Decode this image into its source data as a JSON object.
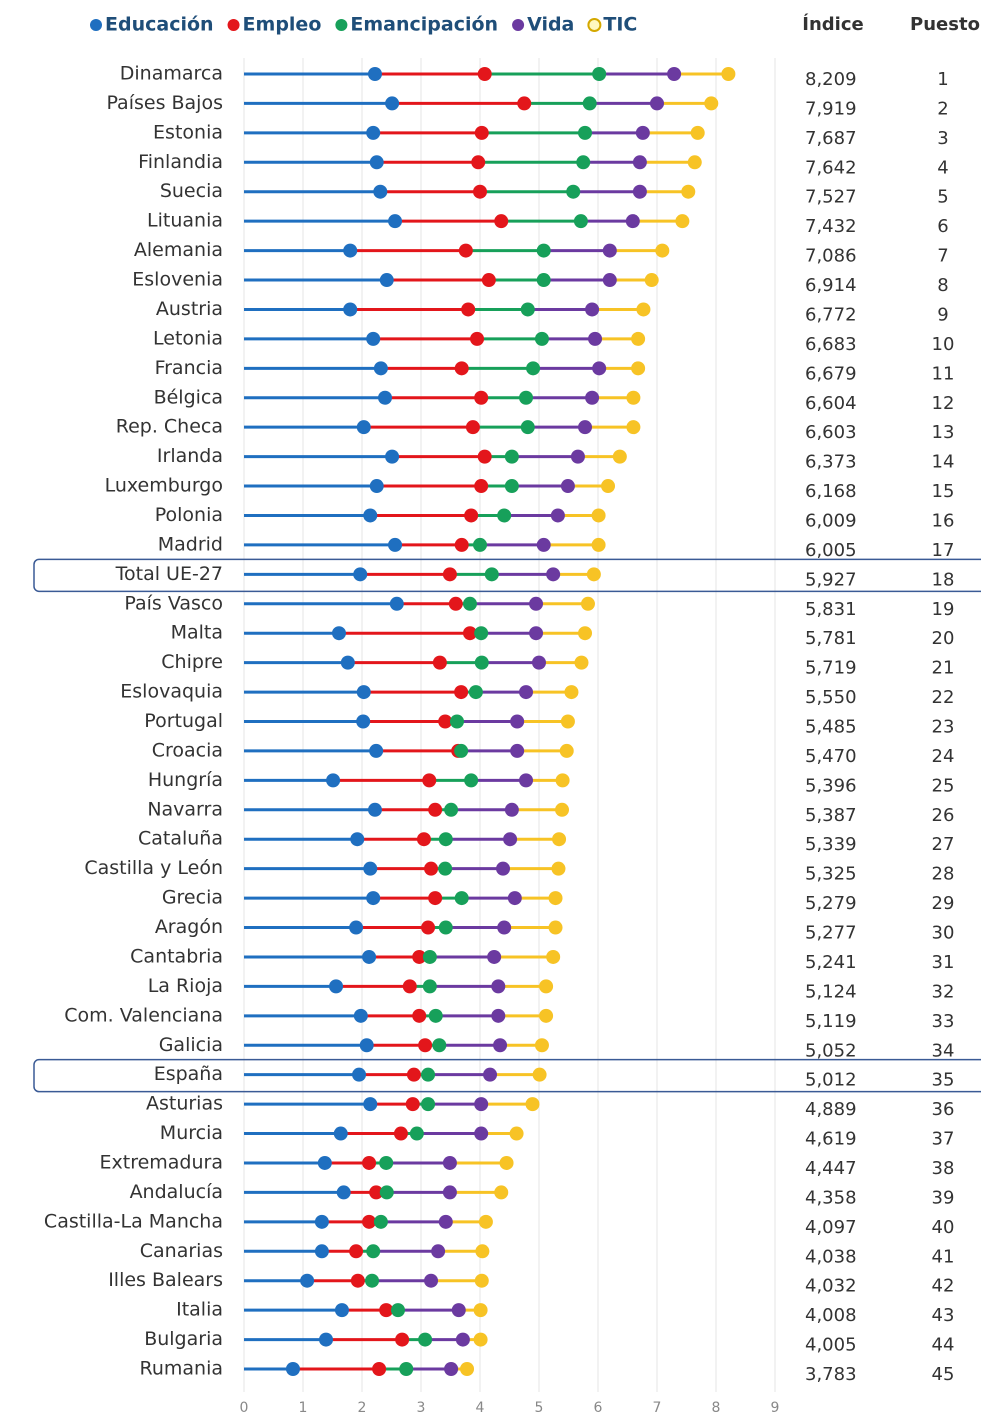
{
  "chart_data": {
    "type": "dot_stack",
    "categories": [
      "Dinamarca",
      "Países Bajos",
      "Estonia",
      "Finlandia",
      "Suecia",
      "Lituania",
      "Alemania",
      "Eslovenia",
      "Austria",
      "Letonia",
      "Francia",
      "Bélgica",
      "Rep. Checa",
      "Irlanda",
      "Luxemburgo",
      "Polonia",
      "Madrid",
      "Total UE-27",
      "País Vasco",
      "Malta",
      "Chipre",
      "Eslovaquia",
      "Portugal",
      "Croacia",
      "Hungría",
      "Navarra",
      "Cataluña",
      "Castilla y León",
      "Grecia",
      "Aragón",
      "Cantabria",
      "La Rioja",
      "Com. Valenciana",
      "Galicia",
      "España",
      "Asturias",
      "Murcia",
      "Extremadura",
      "Andalucía",
      "Castilla-La Mancha",
      "Canarias",
      "Illes Balears",
      "Italia",
      "Bulgaria",
      "Rumania"
    ],
    "series": [
      {
        "name": "Educación",
        "color": "#1f6fc0",
        "values": [
          2.22,
          2.51,
          2.19,
          2.25,
          2.31,
          2.56,
          1.8,
          2.42,
          1.8,
          2.19,
          2.32,
          2.39,
          2.03,
          2.51,
          2.25,
          2.14,
          2.56,
          1.97,
          2.59,
          1.61,
          1.76,
          2.03,
          2.02,
          2.24,
          1.51,
          2.22,
          1.92,
          2.14,
          2.19,
          1.9,
          2.12,
          1.56,
          1.98,
          2.08,
          1.95,
          2.14,
          1.64,
          1.37,
          1.69,
          1.32,
          1.32,
          1.07,
          1.66,
          1.39,
          0.83
        ]
      },
      {
        "name": "Empleo",
        "color": "#e3161b",
        "values": [
          1.86,
          2.24,
          1.84,
          1.72,
          1.69,
          1.8,
          1.96,
          1.73,
          2.0,
          1.76,
          1.37,
          1.63,
          1.85,
          1.57,
          1.77,
          1.71,
          1.13,
          1.52,
          1.0,
          2.22,
          1.56,
          1.65,
          1.39,
          1.39,
          1.63,
          1.02,
          1.13,
          1.03,
          1.05,
          1.22,
          0.85,
          1.25,
          0.99,
          0.99,
          0.93,
          0.72,
          1.02,
          0.75,
          0.55,
          0.8,
          0.58,
          0.86,
          0.75,
          1.29,
          1.46
        ]
      },
      {
        "name": "Emancipación",
        "color": "#17a05a",
        "values": [
          1.94,
          1.11,
          1.75,
          1.78,
          1.58,
          1.35,
          1.32,
          0.93,
          1.01,
          1.1,
          1.21,
          0.76,
          0.93,
          0.46,
          0.52,
          0.56,
          0.31,
          0.71,
          0.24,
          0.19,
          0.71,
          0.25,
          0.2,
          0.05,
          0.71,
          0.27,
          0.37,
          0.24,
          0.45,
          0.3,
          0.18,
          0.34,
          0.28,
          0.24,
          0.24,
          0.26,
          0.27,
          0.29,
          0.18,
          0.2,
          0.29,
          0.24,
          0.2,
          0.39,
          0.46
        ]
      },
      {
        "name": "Vida",
        "color": "#6b3aa0",
        "values": [
          1.27,
          1.14,
          0.98,
          0.96,
          1.13,
          0.88,
          1.12,
          1.12,
          1.09,
          0.9,
          1.12,
          1.12,
          0.97,
          1.12,
          0.95,
          0.91,
          1.08,
          1.04,
          1.12,
          0.93,
          0.97,
          0.85,
          1.02,
          0.95,
          0.93,
          1.03,
          1.09,
          0.98,
          0.9,
          0.99,
          1.09,
          1.16,
          1.06,
          1.03,
          1.05,
          0.9,
          1.09,
          1.08,
          1.07,
          1.1,
          1.1,
          1.0,
          1.03,
          0.64,
          0.76
        ]
      },
      {
        "name": "TIC",
        "color": "#f7c325",
        "values": [
          0.92,
          0.92,
          0.93,
          0.93,
          0.82,
          0.84,
          0.89,
          0.71,
          0.87,
          0.73,
          0.66,
          0.7,
          0.82,
          0.71,
          0.68,
          0.69,
          0.93,
          0.69,
          0.88,
          0.83,
          0.72,
          0.77,
          0.86,
          0.84,
          0.62,
          0.85,
          0.83,
          0.94,
          0.69,
          0.87,
          1.0,
          0.81,
          0.81,
          0.71,
          0.84,
          0.87,
          0.6,
          0.96,
          0.87,
          0.68,
          0.75,
          0.86,
          0.37,
          0.3,
          0.27
        ]
      }
    ],
    "xlim": [
      0,
      9
    ],
    "xticks": [
      0,
      1,
      2,
      3,
      4,
      5,
      6,
      7,
      8,
      9
    ],
    "grid": true
  },
  "table": {
    "headers": [
      "Índice",
      "Puesto"
    ],
    "indice": [
      "8,209",
      "7,919",
      "7,687",
      "7,642",
      "7,527",
      "7,432",
      "7,086",
      "6,914",
      "6,772",
      "6,683",
      "6,679",
      "6,604",
      "6,603",
      "6,373",
      "6,168",
      "6,009",
      "6,005",
      "5,927",
      "5,831",
      "5,781",
      "5,719",
      "5,550",
      "5,485",
      "5,470",
      "5,396",
      "5,387",
      "5,339",
      "5,325",
      "5,279",
      "5,277",
      "5,241",
      "5,124",
      "5,119",
      "5,052",
      "5,012",
      "4,889",
      "4,619",
      "4,447",
      "4,358",
      "4,097",
      "4,038",
      "4,032",
      "4,008",
      "4,005",
      "3,783"
    ],
    "puesto": [
      1,
      2,
      3,
      4,
      5,
      6,
      7,
      8,
      9,
      10,
      11,
      12,
      13,
      14,
      15,
      16,
      17,
      18,
      19,
      20,
      21,
      22,
      23,
      24,
      25,
      26,
      27,
      28,
      29,
      30,
      31,
      32,
      33,
      34,
      35,
      36,
      37,
      38,
      39,
      40,
      41,
      42,
      43,
      44,
      45
    ]
  }
}
